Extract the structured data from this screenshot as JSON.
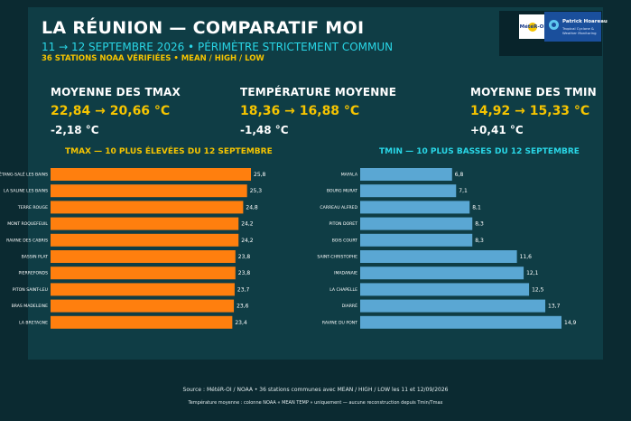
{
  "header": {
    "title": "LA RÉUNION — COMPARATIF MOI",
    "subtitle": "11 → 12 SEPTEMBRE 2026 • PÉRIMÈTRE STRICTEMENT COMMUN",
    "note": "36 STATIONS NOAA VÉRIFIÉES • MEAN / HIGH / LOW"
  },
  "logos": {
    "meteo_text": "MétéR-OI",
    "author_name": "Patrick Hoareau",
    "author_desc": "Tropical Cyclone & Weather Monitoring"
  },
  "stats": [
    {
      "label": "MOYENNE DES TMAX",
      "value": "22,84 → 20,66 °C",
      "delta": "-2,18 °C"
    },
    {
      "label": "TEMPÉRATURE MOYENNE",
      "value": "18,36 → 16,88 °C",
      "delta": "-1,48 °C"
    },
    {
      "label": "MOYENNE DES TMIN",
      "value": "14,92 → 15,33 °C",
      "delta": "+0,41 °C"
    }
  ],
  "chart_data": [
    {
      "type": "bar",
      "orientation": "horizontal",
      "title": "TMAX — 10 PLUS ÉLEVÉES DU 12 SEPTEMBRE",
      "categories": [
        "ÉTANG-SALÉ LES BAINS",
        "LA SALINE LES BAINS",
        "TERRE ROUGE",
        "MONT ROQUEFEUIL",
        "RAVINE DES CABRIS",
        "BASSIN PLAT",
        "PIERREFONDS",
        "PITON SAINT-LEU",
        "BRAS MADELEINE",
        "LA BRETAGNE"
      ],
      "values": [
        25.8,
        25.3,
        24.8,
        24.2,
        24.2,
        23.8,
        23.8,
        23.7,
        23.6,
        23.4
      ],
      "value_labels": [
        "25,8",
        "25,3",
        "24,8",
        "24,2",
        "24,2",
        "23,8",
        "23,8",
        "23,7",
        "23,6",
        "23,4"
      ],
      "color": "#ff7f0e"
    },
    {
      "type": "bar",
      "orientation": "horizontal",
      "title": "TMIN — 10 PLUS BASSES DU 12 SEPTEMBRE",
      "categories": [
        "MAFALA",
        "BOURG MURAT",
        "CARREAU ALFRED",
        "PITON DORET",
        "BOIS COURT",
        "SAINT-CHRISTOPHE",
        "IMADANAIE",
        "LA CHAPELLE",
        "DIARRÉ",
        "RAVINE DU PONT"
      ],
      "values": [
        6.8,
        7.1,
        8.1,
        8.3,
        8.3,
        11.6,
        12.1,
        12.5,
        13.7,
        14.9
      ],
      "value_labels": [
        "6,8",
        "7,1",
        "8,1",
        "8,3",
        "8,3",
        "11,6",
        "12,1",
        "12,5",
        "13,7",
        "14,9"
      ],
      "color": "#5aa7d3"
    }
  ],
  "footer": {
    "source": "Source : MétéR-OI / NOAA • 36 stations communes avec MEAN / HIGH / LOW les 11 et 12/09/2026",
    "note": "Température moyenne : colonne NOAA « MEAN TEMP » uniquement — aucune reconstruction depuis Tmin/Tmax"
  },
  "colors": {
    "background": "#0b2a31",
    "panel": "#0f3d45",
    "accent_yellow": "#f5c400",
    "accent_cyan": "#29d6e6"
  }
}
